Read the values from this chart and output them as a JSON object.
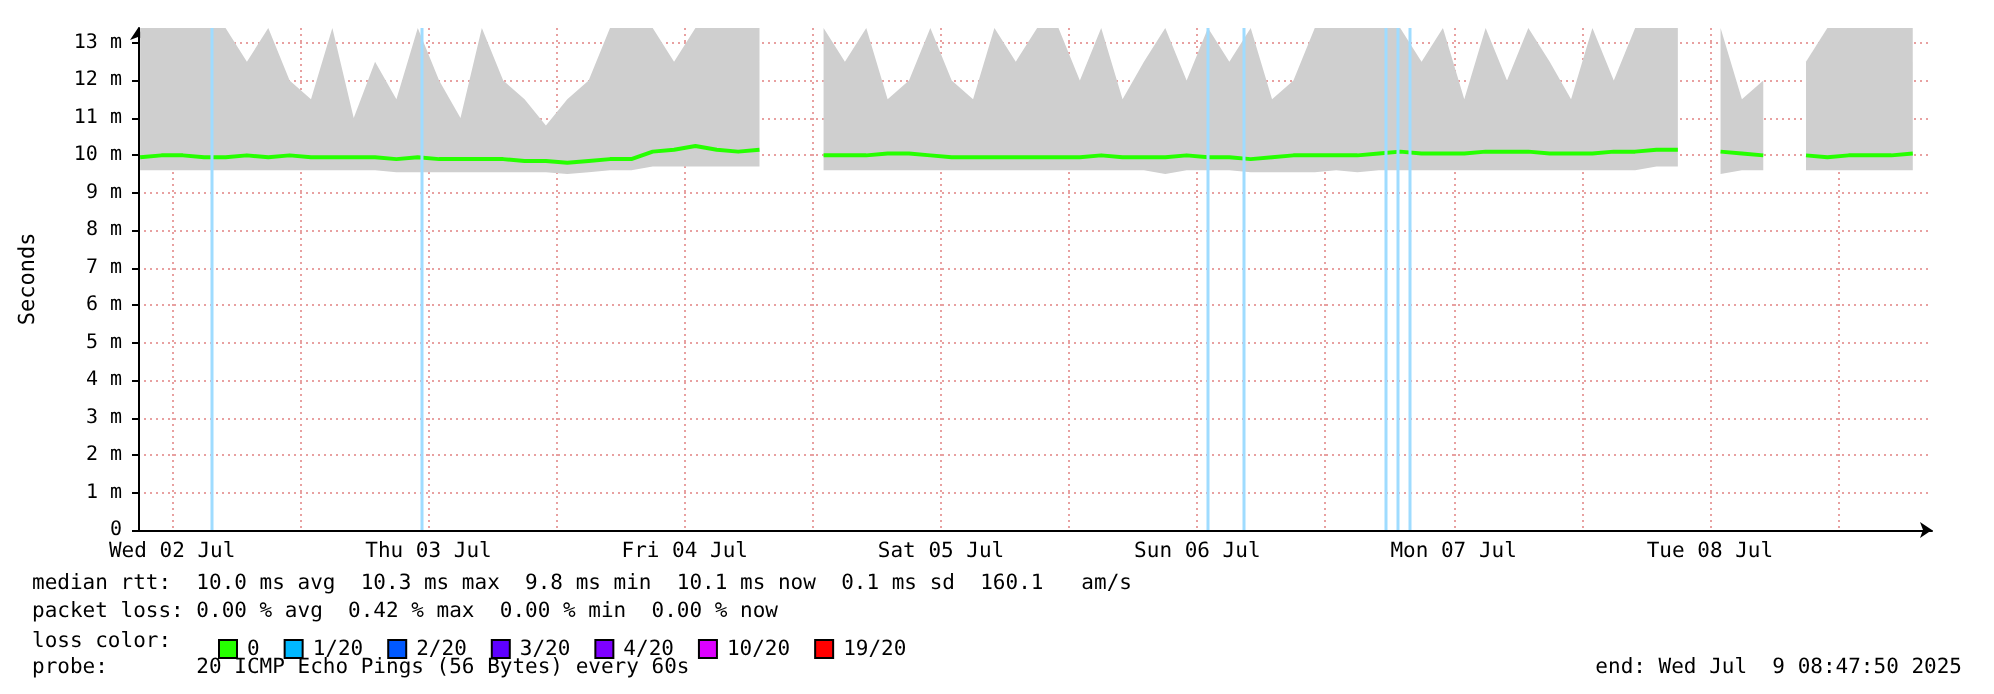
{
  "chart_data": {
    "type": "line",
    "ylabel": "Seconds",
    "legend_title": "loss color:",
    "legend": "bottom",
    "grid": true,
    "x": [
      "2025-07-02T09:00",
      "2025-07-02T11:00",
      "2025-07-02T13:00",
      "2025-07-02T15:00",
      "2025-07-02T17:00",
      "2025-07-02T19:00",
      "2025-07-02T21:00",
      "2025-07-02T23:00",
      "2025-07-03T01:00",
      "2025-07-03T03:00",
      "2025-07-03T05:00",
      "2025-07-03T07:00",
      "2025-07-03T09:00",
      "2025-07-03T11:00",
      "2025-07-03T13:00",
      "2025-07-03T15:00",
      "2025-07-03T17:00",
      "2025-07-03T19:00",
      "2025-07-03T21:00",
      "2025-07-03T23:00",
      "2025-07-04T01:00",
      "2025-07-04T03:00",
      "2025-07-04T05:00",
      "2025-07-04T07:00",
      "2025-07-04T09:00",
      "2025-07-04T11:00",
      "2025-07-04T13:00",
      "2025-07-04T15:00",
      "2025-07-04T17:00",
      "2025-07-04T19:00",
      "2025-07-04T21:00",
      "2025-07-04T23:00",
      "2025-07-05T01:00",
      "2025-07-05T03:00",
      "2025-07-05T05:00",
      "2025-07-05T07:00",
      "2025-07-05T09:00",
      "2025-07-05T11:00",
      "2025-07-05T13:00",
      "2025-07-05T15:00",
      "2025-07-05T17:00",
      "2025-07-05T19:00",
      "2025-07-05T21:00",
      "2025-07-05T23:00",
      "2025-07-06T01:00",
      "2025-07-06T03:00",
      "2025-07-06T05:00",
      "2025-07-06T07:00",
      "2025-07-06T09:00",
      "2025-07-06T11:00",
      "2025-07-06T13:00",
      "2025-07-06T15:00",
      "2025-07-06T17:00",
      "2025-07-06T19:00",
      "2025-07-06T21:00",
      "2025-07-06T23:00",
      "2025-07-07T01:00",
      "2025-07-07T03:00",
      "2025-07-07T05:00",
      "2025-07-07T07:00",
      "2025-07-07T09:00",
      "2025-07-07T11:00",
      "2025-07-07T13:00",
      "2025-07-07T15:00",
      "2025-07-07T17:00",
      "2025-07-07T19:00",
      "2025-07-07T21:00",
      "2025-07-07T23:00",
      "2025-07-08T01:00",
      "2025-07-08T03:00",
      "2025-07-08T05:00",
      "2025-07-08T07:00",
      "2025-07-08T09:00",
      "2025-07-08T11:00",
      "2025-07-08T13:00",
      "2025-07-08T15:00",
      "2025-07-08T17:00",
      "2025-07-08T19:00",
      "2025-07-08T21:00",
      "2025-07-08T23:00",
      "2025-07-09T01:00",
      "2025-07-09T03:00",
      "2025-07-09T05:00",
      "2025-07-09T07:00"
    ],
    "xlim": [
      "2025-07-02T08:48",
      "2025-07-09T08:48"
    ],
    "xticks": [
      {
        "value": "2025-07-02T12:00",
        "label": "Wed 02 Jul"
      },
      {
        "value": "2025-07-03T00:00",
        "label": null
      },
      {
        "value": "2025-07-03T12:00",
        "label": "Thu 03 Jul"
      },
      {
        "value": "2025-07-04T00:00",
        "label": null
      },
      {
        "value": "2025-07-04T12:00",
        "label": "Fri 04 Jul"
      },
      {
        "value": "2025-07-05T00:00",
        "label": null
      },
      {
        "value": "2025-07-05T12:00",
        "label": "Sat 05 Jul"
      },
      {
        "value": "2025-07-06T00:00",
        "label": null
      },
      {
        "value": "2025-07-06T12:00",
        "label": "Sun 06 Jul"
      },
      {
        "value": "2025-07-07T00:00",
        "label": null
      },
      {
        "value": "2025-07-07T12:00",
        "label": "Mon 07 Jul"
      },
      {
        "value": "2025-07-08T00:00",
        "label": null
      },
      {
        "value": "2025-07-08T12:00",
        "label": "Tue 08 Jul"
      },
      {
        "value": "2025-07-09T00:00",
        "label": null
      }
    ],
    "ylim": [
      0,
      13.4
    ],
    "yticks": [
      0,
      {
        "value": 1,
        "label": "1 m"
      },
      {
        "value": 2,
        "label": "2 m"
      },
      {
        "value": 3,
        "label": "3 m"
      },
      {
        "value": 4,
        "label": "4 m"
      },
      {
        "value": 5,
        "label": "5 m"
      },
      {
        "value": 6,
        "label": "6 m"
      },
      {
        "value": 7,
        "label": "7 m"
      },
      {
        "value": 8,
        "label": "8 m"
      },
      {
        "value": 9,
        "label": "9 m"
      },
      {
        "value": 10,
        "label": "10 m"
      },
      {
        "value": 11,
        "label": "11 m"
      },
      {
        "value": 12,
        "label": "12 m"
      },
      {
        "value": 13,
        "label": "13 m"
      }
    ],
    "series": [
      {
        "name": "0",
        "color": "#26ff00",
        "values": [
          9.95,
          10.0,
          10.0,
          9.95,
          9.95,
          10.0,
          9.95,
          10.0,
          9.95,
          9.95,
          9.95,
          9.95,
          9.9,
          9.95,
          9.9,
          9.9,
          9.9,
          9.9,
          9.85,
          9.85,
          9.8,
          9.85,
          9.9,
          9.9,
          10.1,
          10.15,
          10.25,
          10.15,
          10.1,
          10.15,
          null,
          null,
          10.0,
          10.0,
          10.0,
          10.05,
          10.05,
          10.0,
          9.95,
          9.95,
          9.95,
          9.95,
          9.95,
          9.95,
          9.95,
          10.0,
          9.95,
          9.95,
          9.95,
          10.0,
          9.95,
          9.95,
          9.9,
          9.95,
          10.0,
          10.0,
          10.0,
          10.0,
          10.05,
          10.1,
          10.05,
          10.05,
          10.05,
          10.1,
          10.1,
          10.1,
          10.05,
          10.05,
          10.05,
          10.1,
          10.1,
          10.15,
          10.15,
          null,
          10.1,
          10.05,
          10.0,
          null,
          10.0,
          9.95,
          10.0,
          10.0,
          10.0,
          10.05
        ],
        "lower": [
          9.6,
          9.6,
          9.6,
          9.6,
          9.6,
          9.6,
          9.6,
          9.6,
          9.6,
          9.6,
          9.6,
          9.6,
          9.55,
          9.55,
          9.55,
          9.55,
          9.55,
          9.55,
          9.55,
          9.55,
          9.5,
          9.55,
          9.6,
          9.6,
          9.7,
          9.7,
          9.7,
          9.7,
          9.7,
          9.7,
          null,
          null,
          9.6,
          9.6,
          9.6,
          9.6,
          9.6,
          9.6,
          9.6,
          9.6,
          9.6,
          9.6,
          9.6,
          9.6,
          9.6,
          9.6,
          9.6,
          9.6,
          9.5,
          9.6,
          9.6,
          9.6,
          9.55,
          9.55,
          9.55,
          9.55,
          9.6,
          9.55,
          9.6,
          9.6,
          9.6,
          9.6,
          9.6,
          9.6,
          9.6,
          9.6,
          9.6,
          9.6,
          9.6,
          9.6,
          9.6,
          9.7,
          9.7,
          null,
          9.5,
          9.6,
          9.6,
          null,
          9.6,
          9.6,
          9.6,
          9.6,
          9.6,
          9.6
        ],
        "upper": [
          13.4,
          13.4,
          13.4,
          13.4,
          13.4,
          12.5,
          13.4,
          12.0,
          11.5,
          13.4,
          11.0,
          12.5,
          11.5,
          13.4,
          12.0,
          11.0,
          13.4,
          12.0,
          11.5,
          10.8,
          11.5,
          12.0,
          13.4,
          13.4,
          13.4,
          12.5,
          13.4,
          13.4,
          13.4,
          13.4,
          null,
          null,
          13.4,
          12.5,
          13.4,
          11.5,
          12.0,
          13.4,
          12.0,
          11.5,
          13.4,
          12.5,
          13.4,
          13.4,
          12.0,
          13.4,
          11.5,
          12.5,
          13.4,
          12.0,
          13.4,
          12.5,
          13.4,
          11.5,
          12.0,
          13.4,
          13.4,
          13.4,
          13.4,
          13.4,
          12.5,
          13.4,
          11.5,
          13.4,
          12.0,
          13.4,
          12.5,
          11.5,
          13.4,
          12.0,
          13.4,
          13.4,
          13.4,
          null,
          13.4,
          11.5,
          12.0,
          null,
          12.5,
          13.4,
          13.4,
          13.4,
          13.4,
          13.4
        ]
      },
      {
        "name": "1/20",
        "color": "#00b8ff",
        "values": [
          null,
          null,
          null,
          null,
          null,
          null,
          null,
          null,
          null,
          null,
          null,
          null,
          null,
          null,
          null,
          null,
          null,
          null,
          null,
          null,
          null,
          null,
          null,
          null,
          null,
          null,
          null,
          null,
          null,
          null,
          null,
          null,
          null,
          null,
          null,
          null,
          null,
          null,
          null,
          null,
          null,
          null,
          null,
          null,
          null,
          null,
          null,
          null,
          null,
          null,
          null,
          null,
          null,
          null,
          null,
          null,
          null,
          null,
          null,
          null,
          null,
          null,
          null,
          null,
          null,
          null,
          null,
          null,
          null,
          null,
          null,
          null,
          null,
          null,
          null,
          null,
          null,
          null,
          null,
          null,
          null,
          null,
          null,
          null
        ]
      },
      {
        "name": "2/20",
        "color": "#0059ff",
        "values": [
          null,
          null,
          null,
          null,
          null,
          null,
          null,
          null,
          null,
          null,
          null,
          null,
          null,
          null,
          null,
          null,
          null,
          null,
          null,
          null,
          null,
          null,
          null,
          null,
          null,
          null,
          null,
          null,
          null,
          null,
          null,
          null,
          null,
          null,
          null,
          null,
          null,
          null,
          null,
          null,
          null,
          null,
          null,
          null,
          null,
          null,
          null,
          null,
          null,
          null,
          null,
          null,
          null,
          null,
          null,
          null,
          null,
          null,
          null,
          null,
          null,
          null,
          null,
          null,
          null,
          null,
          null,
          null,
          null,
          null,
          null,
          null,
          null,
          null,
          null,
          null,
          null,
          null,
          null,
          null,
          null,
          null,
          null,
          null
        ]
      },
      {
        "name": "3/20",
        "color": "#5e00ff",
        "values": [
          null,
          null,
          null,
          null,
          null,
          null,
          null,
          null,
          null,
          null,
          null,
          null,
          null,
          null,
          null,
          null,
          null,
          null,
          null,
          null,
          null,
          null,
          null,
          null,
          null,
          null,
          null,
          null,
          null,
          null,
          null,
          null,
          null,
          null,
          null,
          null,
          null,
          null,
          null,
          null,
          null,
          null,
          null,
          null,
          null,
          null,
          null,
          null,
          null,
          null,
          null,
          null,
          null,
          null,
          null,
          null,
          null,
          null,
          null,
          null,
          null,
          null,
          null,
          null,
          null,
          null,
          null,
          null,
          null,
          null,
          null,
          null,
          null,
          null,
          null,
          null,
          null,
          null,
          null,
          null,
          null,
          null,
          null,
          null
        ]
      },
      {
        "name": "4/20",
        "color": "#7e00ff",
        "values": [
          null,
          null,
          null,
          null,
          null,
          null,
          null,
          null,
          null,
          null,
          null,
          null,
          null,
          null,
          null,
          null,
          null,
          null,
          null,
          null,
          null,
          null,
          null,
          null,
          null,
          null,
          null,
          null,
          null,
          null,
          null,
          null,
          null,
          null,
          null,
          null,
          null,
          null,
          null,
          null,
          null,
          null,
          null,
          null,
          null,
          null,
          null,
          null,
          null,
          null,
          null,
          null,
          null,
          null,
          null,
          null,
          null,
          null,
          null,
          null,
          null,
          null,
          null,
          null,
          null,
          null,
          null,
          null,
          null,
          null,
          null,
          null,
          null,
          null,
          null,
          null,
          null,
          null,
          null,
          null,
          null,
          null,
          null,
          null
        ]
      },
      {
        "name": "10/20",
        "color": "#dd00ff",
        "values": [
          null,
          null,
          null,
          null,
          null,
          null,
          null,
          null,
          null,
          null,
          null,
          null,
          null,
          null,
          null,
          null,
          null,
          null,
          null,
          null,
          null,
          null,
          null,
          null,
          null,
          null,
          null,
          null,
          null,
          null,
          null,
          null,
          null,
          null,
          null,
          null,
          null,
          null,
          null,
          null,
          null,
          null,
          null,
          null,
          null,
          null,
          null,
          null,
          null,
          null,
          null,
          null,
          null,
          null,
          null,
          null,
          null,
          null,
          null,
          null,
          null,
          null,
          null,
          null,
          null,
          null,
          null,
          null,
          null,
          null,
          null,
          null,
          null,
          null,
          null,
          null,
          null,
          null,
          null,
          null,
          null,
          null,
          null,
          null
        ]
      },
      {
        "name": "19/20",
        "color": "#ff0000",
        "values": [
          null,
          null,
          null,
          null,
          null,
          null,
          null,
          null,
          null,
          null,
          null,
          null,
          null,
          null,
          null,
          null,
          null,
          null,
          null,
          null,
          null,
          null,
          null,
          null,
          null,
          null,
          null,
          null,
          null,
          null,
          null,
          null,
          null,
          null,
          null,
          null,
          null,
          null,
          null,
          null,
          null,
          null,
          null,
          null,
          null,
          null,
          null,
          null,
          null,
          null,
          null,
          null,
          null,
          null,
          null,
          null,
          null,
          null,
          null,
          null,
          null,
          null,
          null,
          null,
          null,
          null,
          null,
          null,
          null,
          null,
          null,
          null,
          null,
          null,
          null,
          null,
          null,
          null,
          null,
          null,
          null,
          null,
          null,
          null
        ]
      }
    ],
    "ref_lines": [
      {
        "axis": "x",
        "value": "2025-07-02T15:42",
        "color": "#9fdcff"
      },
      {
        "axis": "x",
        "value": "2025-07-03T11:18",
        "color": "#9fdcff"
      },
      {
        "axis": "x",
        "value": "2025-07-06T12:54",
        "color": "#9fdcff"
      },
      {
        "axis": "x",
        "value": "2025-07-06T16:18",
        "color": "#9fdcff"
      },
      {
        "axis": "x",
        "value": "2025-07-07T05:42",
        "color": "#9fdcff"
      },
      {
        "axis": "x",
        "value": "2025-07-07T06:42",
        "color": "#9fdcff"
      },
      {
        "axis": "x",
        "value": "2025-07-07T07:48",
        "color": "#9fdcff"
      }
    ],
    "annotations": [
      "median rtt:  10.0 ms avg  10.3 ms max  9.8 ms min  10.1 ms now  0.1 ms sd  160.1   am/s",
      "packet loss: 0.00 % avg  0.42 % max  0.00 % min  0.00 % now",
      "probe:       20 ICMP Echo Pings (56 Bytes) every 60s",
      "end: Wed Jul  9 08:47:50 2025"
    ]
  }
}
